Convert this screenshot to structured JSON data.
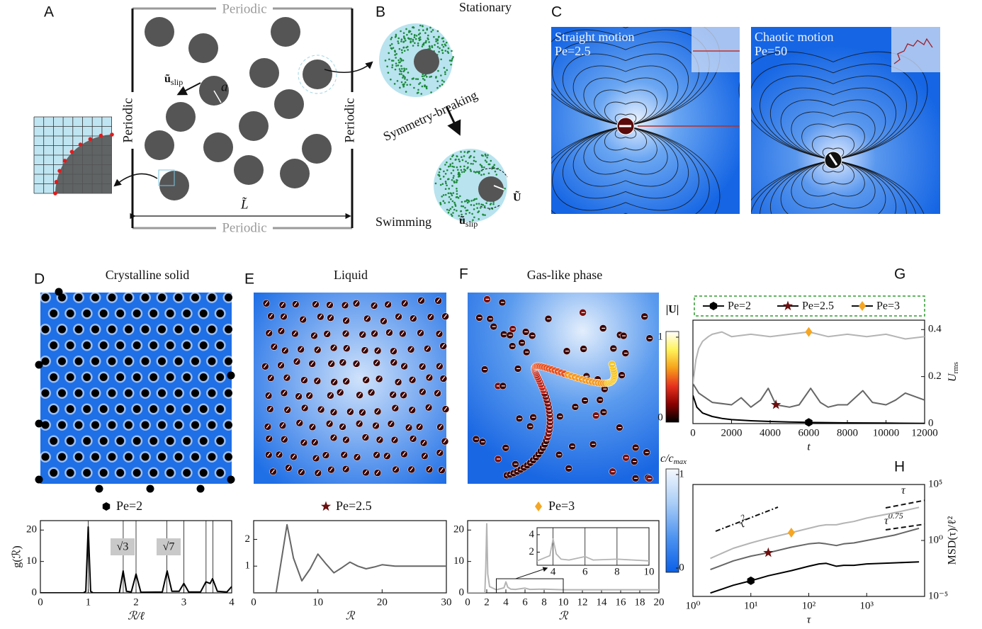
{
  "panels": {
    "A": {
      "letter": "A",
      "periodic": [
        "Periodic",
        "Periodic",
        "Periodic",
        "Periodic"
      ],
      "u_slip": [
        "ũ",
        "slip"
      ],
      "a": "a",
      "L": "L̃"
    },
    "B": {
      "letter": "B",
      "stationary": "Stationary",
      "symmetry_breaking": "Symmetry-breaking",
      "swimming": "Swimming",
      "U": "Ũ",
      "u_slip": [
        "ũ",
        "slip"
      ]
    },
    "C": {
      "letter": "C",
      "left": [
        "Straight motion",
        "Pe=2.5"
      ],
      "right": [
        "Chaotic motion",
        "Pe=50"
      ]
    },
    "D": {
      "letter": "D",
      "title": "Crystalline solid",
      "legend": "Pe=2"
    },
    "E": {
      "letter": "E",
      "title": "Liquid",
      "legend": "Pe=2.5"
    },
    "F": {
      "letter": "F",
      "title": "Gas-like phase",
      "legend": "Pe=3"
    },
    "G": {
      "letter": "G"
    },
    "H": {
      "letter": "H"
    }
  },
  "colorbars": [
    {
      "label": "|U|",
      "lim": [
        0,
        1
      ],
      "ticks": [
        0,
        1
      ],
      "colors": [
        "#000000",
        "#8b0000",
        "#e8321e",
        "#f7a21b",
        "#fff35a",
        "#ffffff"
      ]
    },
    {
      "label": [
        "c/c",
        "max"
      ],
      "lim": [
        0,
        1
      ],
      "ticks": [
        0,
        1
      ],
      "colors": [
        "#0a5fe8",
        "#4d93f0",
        "#a9cdf6",
        "#f4f8fe"
      ]
    }
  ],
  "chart_data": [
    {
      "type": "line",
      "xlabel": "t",
      "ylabel": [
        "U",
        "rms"
      ],
      "xlim": [
        0,
        12000
      ],
      "ylim": [
        0,
        0.44
      ],
      "xticks": [
        0,
        2000,
        4000,
        6000,
        8000,
        10000,
        12000
      ],
      "yticks": [
        0,
        0.2,
        0.4
      ],
      "yaxis_side": "right",
      "legend": "top",
      "series": [
        {
          "name": "Pe=2",
          "color": "#000000",
          "marker": "hexagon",
          "marker_color": "#000000",
          "x": [
            0,
            200,
            500,
            1000,
            1500,
            2000,
            3000,
            4000,
            5000,
            6000,
            8000,
            10000,
            12000
          ],
          "values": [
            0.12,
            0.07,
            0.045,
            0.03,
            0.022,
            0.017,
            0.012,
            0.009,
            0.007,
            0.005,
            0.003,
            0.002,
            0.001
          ]
        },
        {
          "name": "Pe=2.5",
          "color": "#666666",
          "marker": "star",
          "marker_color": "#6b0f0f",
          "x": [
            0,
            300,
            1000,
            2000,
            2500,
            3000,
            3500,
            3900,
            4300,
            5000,
            5500,
            6100,
            6600,
            7000,
            7500,
            8000,
            8800,
            9300,
            10000,
            10500,
            11000,
            12000
          ],
          "values": [
            0.17,
            0.13,
            0.09,
            0.08,
            0.11,
            0.07,
            0.1,
            0.15,
            0.08,
            0.07,
            0.08,
            0.15,
            0.09,
            0.07,
            0.08,
            0.08,
            0.14,
            0.09,
            0.08,
            0.1,
            0.13,
            0.1
          ]
        },
        {
          "name": "Pe=3",
          "color": "#b4b4b4",
          "marker": "diamond",
          "marker_color": "#f5a623",
          "x": [
            0,
            150,
            300,
            500,
            800,
            1000,
            1500,
            2000,
            3000,
            4000,
            5000,
            6000,
            7000,
            8000,
            9000,
            10000,
            11000,
            12000
          ],
          "values": [
            0.17,
            0.27,
            0.32,
            0.35,
            0.37,
            0.38,
            0.39,
            0.37,
            0.38,
            0.37,
            0.38,
            0.39,
            0.37,
            0.38,
            0.37,
            0.38,
            0.36,
            0.37
          ]
        }
      ]
    },
    {
      "type": "line",
      "xscale": "log",
      "yscale": "log",
      "xlabel": "τ",
      "ylabel": "MSD(τ)/ℓ²",
      "xlim": [
        1,
        10000
      ],
      "ylim": [
        1e-05,
        100000
      ],
      "xticks": [
        {
          "value": 1,
          "label": "10⁰"
        },
        {
          "value": 10,
          "label": "10¹"
        },
        {
          "value": 100,
          "label": "10²"
        },
        {
          "value": 1000,
          "label": "10³"
        }
      ],
      "yticks": [
        {
          "value": 1e-05,
          "label": "10⁻⁵"
        },
        {
          "value": 1,
          "label": "10⁰"
        },
        {
          "value": 100000,
          "label": "10⁵"
        }
      ],
      "yaxis_side": "right",
      "guides": [
        {
          "label": "τ",
          "sup": "2",
          "exponent": 2
        },
        {
          "label": "τ",
          "exponent": 1
        },
        {
          "label": "τ",
          "sup": "0.75",
          "exponent": 0.75
        }
      ],
      "x": [
        2,
        5,
        10,
        20,
        50,
        100,
        150,
        200,
        300,
        400,
        600,
        1000,
        3000,
        8000
      ],
      "series": [
        {
          "name": "Pe=2",
          "color": "#000000",
          "marker": "hexagon",
          "marker_color": "#000000",
          "values": [
            2e-05,
            0.0001,
            0.00025,
            0.0007,
            0.002,
            0.005,
            0.008,
            0.009,
            0.005,
            0.006,
            0.006,
            0.008,
            0.01,
            0.012
          ]
        },
        {
          "name": "Pe=2.5",
          "color": "#666666",
          "marker": "star",
          "marker_color": "#6b0f0f",
          "values": [
            0.0025,
            0.015,
            0.04,
            0.08,
            0.25,
            0.5,
            0.6,
            0.5,
            0.35,
            0.5,
            0.6,
            1,
            3,
            12
          ]
        },
        {
          "name": "Pe=3",
          "color": "#b4b4b4",
          "marker": "diamond",
          "marker_color": "#f5a623",
          "values": [
            0.025,
            0.2,
            0.6,
            1.6,
            5,
            12,
            20,
            25,
            25,
            35,
            50,
            100,
            300,
            900
          ]
        }
      ]
    },
    {
      "type": "line",
      "xlabel": "ℛ/ℓ",
      "ylabel": "g(ℛ)",
      "xlim": [
        0,
        4
      ],
      "ylim": [
        0,
        23
      ],
      "xticks": [
        0,
        1,
        2,
        3,
        4
      ],
      "yticks": [
        0,
        10,
        20
      ],
      "reference_lines": [
        1,
        1.732,
        2,
        2.646,
        3,
        3.464,
        3.606
      ],
      "annotations": [
        "√3",
        "√7"
      ],
      "series": [
        {
          "color": "#000000",
          "x": [
            0,
            0.9,
            0.95,
            1,
            1.05,
            1.1,
            1.65,
            1.73,
            1.8,
            1.9,
            2,
            2.1,
            2.55,
            2.65,
            2.75,
            2.9,
            3,
            3.1,
            3.35,
            3.46,
            3.55,
            3.6,
            3.7,
            3.9,
            4
          ],
          "values": [
            0,
            0,
            0.5,
            21,
            0.5,
            0,
            0,
            7,
            0.5,
            0.3,
            6,
            0.2,
            0.3,
            7,
            0.5,
            0.5,
            3,
            0.3,
            0.3,
            3.5,
            3,
            4.5,
            0.5,
            0.3,
            2
          ]
        }
      ]
    },
    {
      "type": "line",
      "xlabel": "ℛ",
      "xlim": [
        0,
        30
      ],
      "ylim": [
        0,
        2.7
      ],
      "xticks": [
        0,
        10,
        20,
        30
      ],
      "yticks": [
        1,
        2
      ],
      "series": [
        {
          "color": "#666666",
          "x": [
            0,
            3.5,
            4.3,
            5.2,
            6.2,
            7.5,
            8.8,
            10,
            11.2,
            12.5,
            13.8,
            15,
            16.2,
            17.5,
            18.8,
            20,
            22,
            25,
            28,
            30
          ],
          "values": [
            0,
            0,
            1.2,
            2.55,
            1.3,
            0.45,
            0.9,
            1.45,
            1.1,
            0.75,
            0.95,
            1.15,
            1.0,
            0.9,
            0.97,
            1.05,
            1.0,
            1.0,
            1.0,
            1.0
          ]
        }
      ]
    },
    {
      "type": "line",
      "xlabel": "ℛ",
      "xlim": [
        0,
        20
      ],
      "ylim": [
        0,
        23
      ],
      "xticks": [
        0,
        2,
        4,
        6,
        8,
        10,
        12,
        14,
        16,
        18,
        20
      ],
      "yticks": [
        0,
        10,
        20
      ],
      "series": [
        {
          "color": "#b4b4b4",
          "x": [
            0,
            1.8,
            1.9,
            2,
            2.1,
            2.3,
            3,
            3.8,
            4,
            4.2,
            4.5,
            5,
            6,
            6.5,
            8,
            10,
            14,
            20
          ],
          "values": [
            0,
            0,
            8,
            22,
            6,
            2,
            1,
            1.6,
            3.5,
            1.8,
            1.2,
            1.1,
            1.5,
            1.1,
            1.2,
            1.0,
            1.0,
            1.0
          ]
        }
      ],
      "inset": {
        "xlim": [
          3,
          10
        ],
        "ylim": [
          0.5,
          4.8
        ],
        "xticks": [
          4,
          6,
          8,
          10
        ],
        "yticks": [
          2,
          4
        ],
        "grid": true
      }
    }
  ]
}
